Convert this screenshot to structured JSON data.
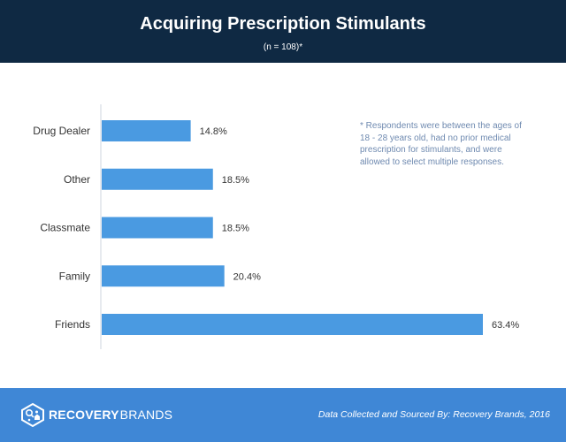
{
  "header": {
    "title": "Acquiring Prescription Stimulants",
    "subtitle": "(n = 108)*"
  },
  "note": "* Respondents were between the ages of 18 - 28 years old, had no prior medical prescription for stimulants, and were allowed to select multiple responses.",
  "footer": {
    "logo_word_1": "RECOVERY",
    "logo_word_2": "BRANDS",
    "logo_icon": "recovery-brands-logo-icon",
    "source": "Data Collected and Sourced By: Recovery Brands, 2016"
  },
  "colors": {
    "header_bg": "#0f2943",
    "bar": "#4a9ae1",
    "footer_bg": "#3f87d6",
    "note_text": "#6f8ab0"
  },
  "chart_data": {
    "type": "bar",
    "orientation": "horizontal",
    "categories": [
      "Drug Dealer",
      "Other",
      "Classmate",
      "Family",
      "Friends"
    ],
    "values": [
      14.8,
      18.5,
      18.5,
      20.4,
      63.4
    ],
    "value_labels": [
      "14.8%",
      "18.5%",
      "18.5%",
      "20.4%",
      "63.4%"
    ],
    "unit": "%",
    "title": "Acquiring Prescription Stimulants",
    "subtitle": "(n = 108)*",
    "xlim": [
      0,
      63.4
    ],
    "grid": false,
    "legend": "none"
  }
}
